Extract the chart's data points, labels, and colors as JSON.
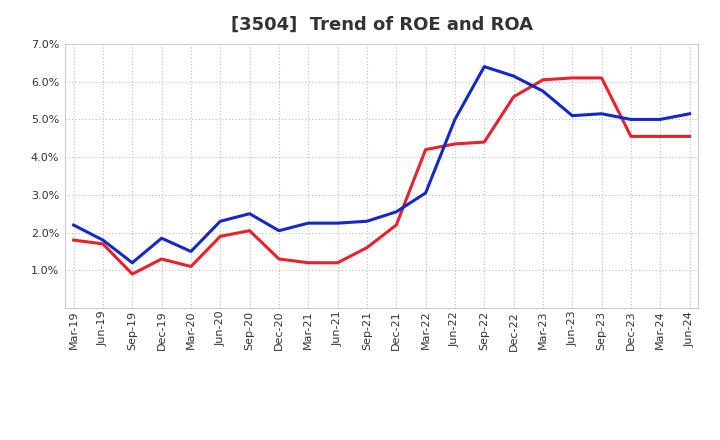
{
  "title": "[3504]  Trend of ROE and ROA",
  "x_labels": [
    "Mar-19",
    "Jun-19",
    "Sep-19",
    "Dec-19",
    "Mar-20",
    "Jun-20",
    "Sep-20",
    "Dec-20",
    "Mar-21",
    "Jun-21",
    "Sep-21",
    "Dec-21",
    "Mar-22",
    "Jun-22",
    "Sep-22",
    "Dec-22",
    "Mar-23",
    "Jun-23",
    "Sep-23",
    "Dec-23",
    "Mar-24",
    "Jun-24"
  ],
  "ROE": [
    1.8,
    1.7,
    0.9,
    1.3,
    1.1,
    1.9,
    2.05,
    1.3,
    1.2,
    1.2,
    1.6,
    2.2,
    4.2,
    4.35,
    4.4,
    5.6,
    6.05,
    6.1,
    6.1,
    4.55,
    4.55,
    4.55
  ],
  "ROA": [
    2.2,
    1.8,
    1.2,
    1.85,
    1.5,
    2.3,
    2.5,
    2.05,
    2.25,
    2.25,
    2.3,
    2.55,
    3.05,
    5.0,
    6.4,
    6.15,
    5.75,
    5.1,
    5.15,
    5.0,
    5.0,
    5.15
  ],
  "roe_color": "#e8212c",
  "roa_color": "#1428c8",
  "ylim": [
    0.0,
    7.0
  ],
  "yticks": [
    1.0,
    2.0,
    3.0,
    4.0,
    5.0,
    6.0,
    7.0
  ],
  "grid_color": "#bbbbbb",
  "background_color": "#ffffff",
  "line_width": 2.2,
  "legend_fontsize": 10,
  "title_fontsize": 13,
  "tick_fontsize": 8.0
}
